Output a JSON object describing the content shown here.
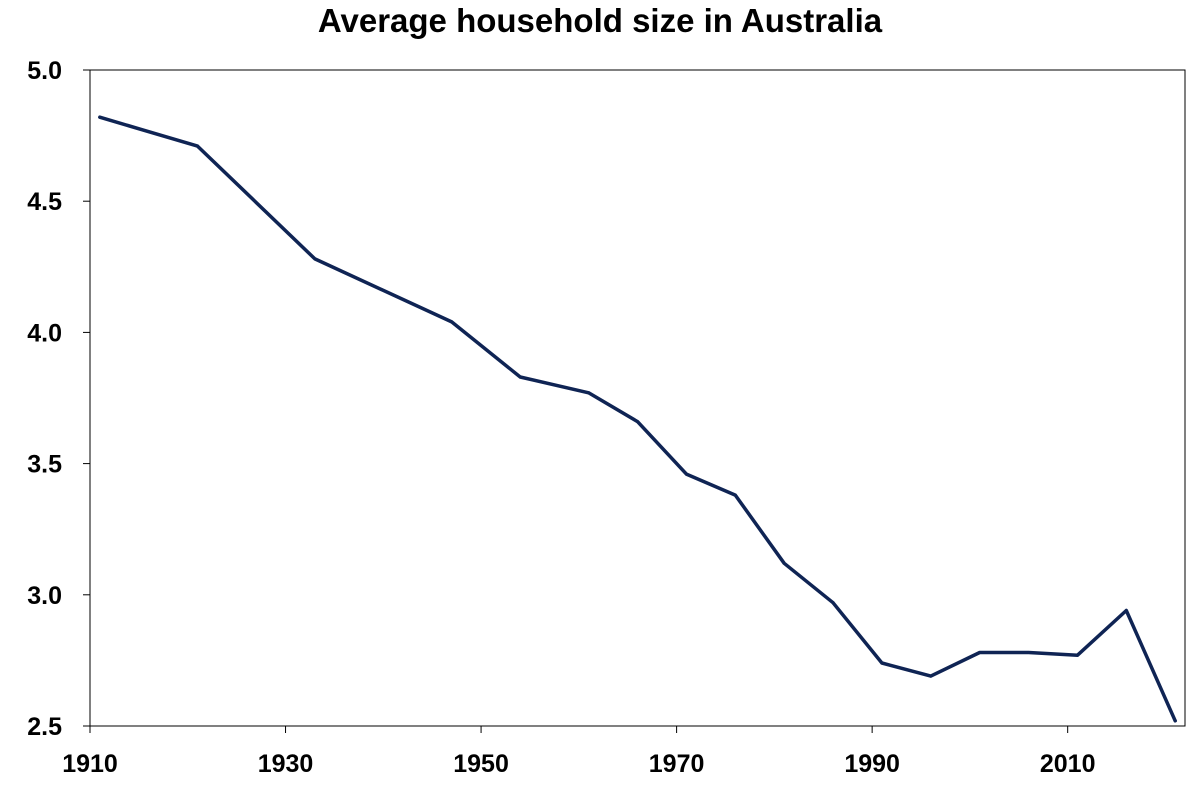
{
  "chart_data": {
    "type": "line",
    "title": "Average household size in Australia",
    "xlabel": "",
    "ylabel": "",
    "xlim": [
      1910,
      2022
    ],
    "ylim": [
      2.5,
      5.0
    ],
    "x_ticks": [
      1910,
      1930,
      1950,
      1970,
      1990,
      2010
    ],
    "y_ticks": [
      "5.0",
      "4.5",
      "4.0",
      "3.5",
      "3.0",
      "2.5"
    ],
    "grid": false,
    "legend": "none",
    "series": [
      {
        "color": "#0f2454",
        "points": [
          [
            1911,
            4.82
          ],
          [
            1921,
            4.71
          ],
          [
            1933,
            4.28
          ],
          [
            1947,
            4.04
          ],
          [
            1954,
            3.83
          ],
          [
            1961,
            3.77
          ],
          [
            1966,
            3.66
          ],
          [
            1971,
            3.46
          ],
          [
            1976,
            3.38
          ],
          [
            1981,
            3.12
          ],
          [
            1986,
            2.97
          ],
          [
            1991,
            2.74
          ],
          [
            1996,
            2.69
          ],
          [
            2001,
            2.78
          ],
          [
            2006,
            2.78
          ],
          [
            2011,
            2.77
          ],
          [
            2016,
            2.94
          ],
          [
            2021,
            2.52
          ]
        ]
      }
    ]
  }
}
